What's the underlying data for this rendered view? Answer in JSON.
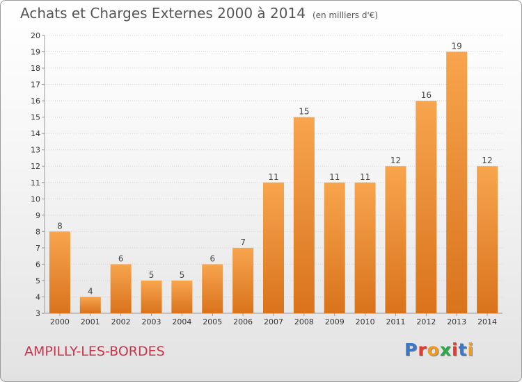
{
  "title": "Achats et Charges Externes 2000 à 2014",
  "subtitle": "(en milliers d'€)",
  "commune": "AMPILLY-LES-BORDES",
  "logo": {
    "letters": [
      "P",
      "r",
      "o",
      "x",
      "i",
      "t",
      "i"
    ],
    "colors": [
      "#3a78c9",
      "#e63a2e",
      "#f29a1a",
      "#2aa84a",
      "#e63a2e",
      "#3a78c9",
      "#f29a1a"
    ]
  },
  "chart_data": {
    "type": "bar",
    "categories": [
      "2000",
      "2001",
      "2002",
      "2003",
      "2004",
      "2005",
      "2006",
      "2007",
      "2008",
      "2009",
      "2010",
      "2011",
      "2012",
      "2013",
      "2014"
    ],
    "values": [
      8,
      4,
      6,
      5,
      5,
      6,
      7,
      11,
      15,
      11,
      11,
      12,
      16,
      19,
      12
    ],
    "data_labels": [
      "8",
      "4",
      "6",
      "5",
      "5",
      "6",
      "7",
      "11",
      "15",
      "11",
      "11",
      "12",
      "16",
      "19",
      "12"
    ],
    "yticks": [
      "3",
      "4",
      "5",
      "6",
      "7",
      "8",
      "9",
      "10",
      "11",
      "12",
      "13",
      "14",
      "15",
      "16",
      "17",
      "18",
      "19",
      "20"
    ],
    "ylim": [
      3,
      20
    ],
    "grid": true,
    "bar_color_top": "#f7a54e",
    "bar_color_bottom": "#d9731c"
  }
}
